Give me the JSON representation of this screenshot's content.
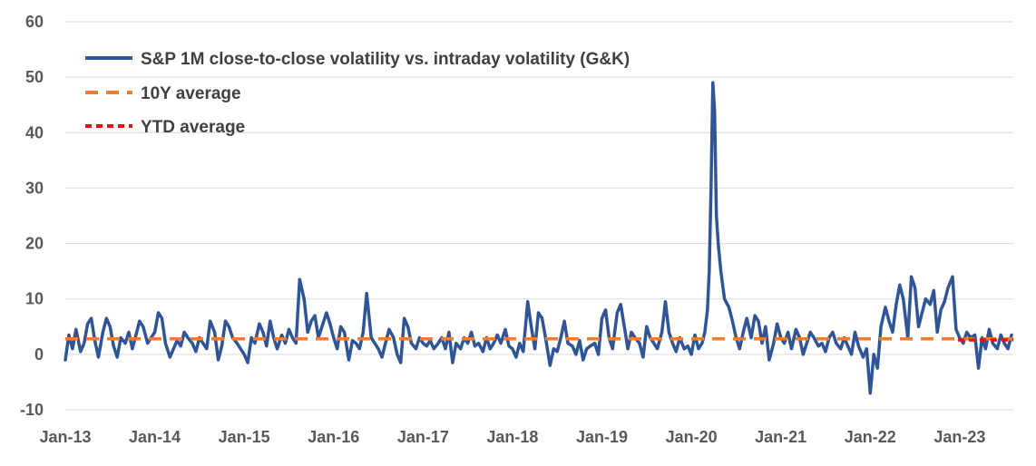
{
  "chart_data": {
    "type": "line",
    "title": "",
    "xlabel": "",
    "ylabel": "",
    "ylim": [
      -10,
      60
    ],
    "yticks": [
      -10,
      0,
      10,
      20,
      30,
      40,
      50,
      60
    ],
    "xlim": [
      2013.0,
      2023.6
    ],
    "xticks": [
      {
        "label": "Jan-13",
        "value": 2013
      },
      {
        "label": "Jan-14",
        "value": 2014
      },
      {
        "label": "Jan-15",
        "value": 2015
      },
      {
        "label": "Jan-16",
        "value": 2016
      },
      {
        "label": "Jan-17",
        "value": 2017
      },
      {
        "label": "Jan-18",
        "value": 2018
      },
      {
        "label": "Jan-19",
        "value": 2019
      },
      {
        "label": "Jan-20",
        "value": 2020
      },
      {
        "label": "Jan-21",
        "value": 2021
      },
      {
        "label": "Jan-22",
        "value": 2022
      },
      {
        "label": "Jan-23",
        "value": 2023
      }
    ],
    "grid": true,
    "legend_position": "top-left",
    "series": [
      {
        "name": "S&P 1M close-to-close volatility vs. intraday volatility (G&K)",
        "color": "#2F5597",
        "style": "solid",
        "x": [
          2013.0,
          2013.04,
          2013.08,
          2013.12,
          2013.17,
          2013.21,
          2013.25,
          2013.29,
          2013.33,
          2013.37,
          2013.42,
          2013.46,
          2013.5,
          2013.54,
          2013.58,
          2013.62,
          2013.67,
          2013.71,
          2013.75,
          2013.79,
          2013.83,
          2013.87,
          2013.92,
          2013.96,
          2014.0,
          2014.04,
          2014.08,
          2014.12,
          2014.17,
          2014.21,
          2014.25,
          2014.29,
          2014.33,
          2014.37,
          2014.42,
          2014.46,
          2014.5,
          2014.54,
          2014.58,
          2014.62,
          2014.67,
          2014.71,
          2014.75,
          2014.79,
          2014.83,
          2014.87,
          2014.92,
          2014.96,
          2015.0,
          2015.04,
          2015.08,
          2015.12,
          2015.17,
          2015.21,
          2015.25,
          2015.29,
          2015.33,
          2015.37,
          2015.42,
          2015.46,
          2015.5,
          2015.54,
          2015.58,
          2015.62,
          2015.67,
          2015.71,
          2015.75,
          2015.79,
          2015.83,
          2015.87,
          2015.92,
          2015.96,
          2016.0,
          2016.04,
          2016.08,
          2016.12,
          2016.17,
          2016.21,
          2016.25,
          2016.29,
          2016.33,
          2016.37,
          2016.42,
          2016.46,
          2016.5,
          2016.54,
          2016.58,
          2016.62,
          2016.67,
          2016.71,
          2016.75,
          2016.79,
          2016.83,
          2016.87,
          2016.92,
          2016.96,
          2017.0,
          2017.04,
          2017.08,
          2017.12,
          2017.17,
          2017.21,
          2017.25,
          2017.29,
          2017.33,
          2017.37,
          2017.42,
          2017.46,
          2017.5,
          2017.54,
          2017.58,
          2017.62,
          2017.67,
          2017.71,
          2017.75,
          2017.79,
          2017.83,
          2017.87,
          2017.92,
          2017.96,
          2018.0,
          2018.04,
          2018.08,
          2018.12,
          2018.17,
          2018.21,
          2018.25,
          2018.29,
          2018.33,
          2018.37,
          2018.42,
          2018.46,
          2018.5,
          2018.54,
          2018.58,
          2018.62,
          2018.67,
          2018.71,
          2018.75,
          2018.79,
          2018.83,
          2018.87,
          2018.92,
          2018.96,
          2019.0,
          2019.04,
          2019.08,
          2019.12,
          2019.17,
          2019.21,
          2019.25,
          2019.29,
          2019.33,
          2019.37,
          2019.42,
          2019.46,
          2019.5,
          2019.54,
          2019.58,
          2019.62,
          2019.67,
          2019.71,
          2019.75,
          2019.79,
          2019.83,
          2019.87,
          2019.92,
          2019.96,
          2020.0,
          2020.04,
          2020.08,
          2020.12,
          2020.15,
          2020.18,
          2020.2,
          2020.22,
          2020.24,
          2020.26,
          2020.28,
          2020.3,
          2020.33,
          2020.37,
          2020.42,
          2020.46,
          2020.5,
          2020.54,
          2020.58,
          2020.62,
          2020.67,
          2020.71,
          2020.75,
          2020.79,
          2020.83,
          2020.87,
          2020.92,
          2020.96,
          2021.0,
          2021.04,
          2021.08,
          2021.12,
          2021.17,
          2021.21,
          2021.25,
          2021.29,
          2021.33,
          2021.37,
          2021.42,
          2021.46,
          2021.5,
          2021.54,
          2021.58,
          2021.62,
          2021.67,
          2021.71,
          2021.75,
          2021.79,
          2021.83,
          2021.87,
          2021.92,
          2021.96,
          2022.0,
          2022.04,
          2022.08,
          2022.12,
          2022.17,
          2022.21,
          2022.25,
          2022.29,
          2022.33,
          2022.37,
          2022.42,
          2022.46,
          2022.5,
          2022.54,
          2022.58,
          2022.62,
          2022.67,
          2022.71,
          2022.75,
          2022.79,
          2022.83,
          2022.87,
          2022.92,
          2022.96,
          2023.0,
          2023.04,
          2023.08,
          2023.12,
          2023.17,
          2023.21,
          2023.25,
          2023.29,
          2023.33,
          2023.37,
          2023.42,
          2023.46,
          2023.5,
          2023.54,
          2023.58
        ],
        "y": [
          -1.0,
          3.5,
          1.0,
          4.5,
          0.5,
          2.0,
          5.5,
          6.5,
          2.5,
          -0.5,
          4.0,
          6.5,
          5.0,
          1.5,
          -0.5,
          3.0,
          2.0,
          4.0,
          1.0,
          3.5,
          6.0,
          5.0,
          2.0,
          3.0,
          4.0,
          7.5,
          6.5,
          2.0,
          -0.5,
          1.0,
          2.5,
          1.5,
          4.0,
          3.0,
          2.0,
          0.5,
          3.0,
          2.0,
          1.0,
          6.0,
          4.0,
          -1.0,
          1.5,
          6.0,
          5.0,
          3.0,
          2.0,
          1.0,
          0.0,
          -1.5,
          3.0,
          2.0,
          5.5,
          4.0,
          1.5,
          6.0,
          3.0,
          1.0,
          3.5,
          2.0,
          4.5,
          3.0,
          2.0,
          13.5,
          10.0,
          4.0,
          6.0,
          7.0,
          3.0,
          5.0,
          7.5,
          5.5,
          3.0,
          1.0,
          5.0,
          4.0,
          -1.0,
          2.5,
          2.0,
          1.0,
          4.0,
          11.0,
          3.0,
          2.0,
          1.0,
          -0.5,
          2.0,
          4.5,
          3.0,
          0.0,
          -1.5,
          6.5,
          5.0,
          2.0,
          1.0,
          3.0,
          2.0,
          1.5,
          2.5,
          1.0,
          2.0,
          3.0,
          1.0,
          4.0,
          -1.5,
          2.0,
          1.0,
          3.0,
          2.0,
          4.0,
          1.5,
          2.0,
          0.5,
          3.0,
          1.0,
          2.0,
          3.5,
          2.0,
          4.5,
          1.5,
          1.0,
          -0.5,
          2.0,
          0.5,
          9.5,
          5.0,
          1.0,
          7.5,
          6.5,
          3.0,
          -2.0,
          1.0,
          0.5,
          3.0,
          6.0,
          2.0,
          1.5,
          0.0,
          2.5,
          -1.0,
          1.0,
          1.5,
          2.0,
          0.0,
          6.5,
          8.0,
          3.0,
          1.0,
          7.5,
          9.0,
          5.0,
          1.0,
          4.0,
          3.0,
          2.0,
          -0.5,
          5.0,
          3.0,
          2.0,
          1.0,
          4.0,
          9.5,
          4.0,
          2.0,
          0.5,
          3.0,
          1.0,
          1.5,
          0.0,
          3.5,
          1.0,
          2.0,
          4.0,
          8.0,
          15.0,
          30.0,
          49.0,
          44.0,
          25.0,
          20.0,
          15.0,
          10.0,
          8.5,
          6.0,
          3.0,
          1.0,
          4.0,
          6.5,
          3.0,
          7.0,
          6.0,
          2.0,
          5.0,
          -1.0,
          2.0,
          5.5,
          3.0,
          2.0,
          4.0,
          1.0,
          4.5,
          3.0,
          0.0,
          2.0,
          4.0,
          3.0,
          1.5,
          2.0,
          0.5,
          3.0,
          4.0,
          2.0,
          1.0,
          3.0,
          1.5,
          0.0,
          4.0,
          1.5,
          -0.5,
          1.0,
          -7.0,
          0.0,
          -2.5,
          5.0,
          8.5,
          6.0,
          4.0,
          9.0,
          12.5,
          10.0,
          3.0,
          14.0,
          12.0,
          5.0,
          7.5,
          10.0,
          9.0,
          11.5,
          4.0,
          8.0,
          9.5,
          12.0,
          14.0,
          4.5,
          3.0,
          2.0,
          4.0,
          3.0,
          3.5,
          -2.5,
          3.0,
          1.0,
          4.5,
          2.0,
          1.0,
          3.5,
          2.0,
          1.0,
          3.5
        ]
      },
      {
        "name": "10Y average",
        "color": "#ED7D31",
        "style": "dashed",
        "x": [
          2013.0,
          2023.6
        ],
        "y": [
          2.8,
          2.8
        ]
      },
      {
        "name": "YTD average",
        "color": "#E81010",
        "style": "dashed",
        "x": [
          2022.98,
          2023.6
        ],
        "y": [
          2.6,
          2.6
        ]
      }
    ]
  }
}
